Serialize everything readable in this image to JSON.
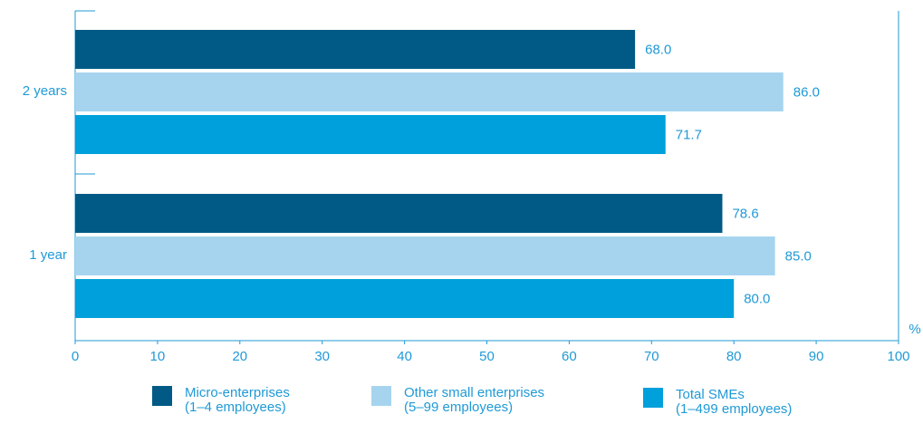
{
  "chart_data": {
    "type": "bar",
    "orientation": "horizontal",
    "categories": [
      "2 years",
      "1 year"
    ],
    "series": [
      {
        "name": "Micro-enterprises (1–4 employees)",
        "color": "#005a85",
        "values": [
          68.0,
          78.6
        ]
      },
      {
        "name": "Other small enterprises (5–99 employees)",
        "color": "#a6d4ef",
        "values": [
          86.0,
          85.0
        ]
      },
      {
        "name": "Total SMEs (1–499 employees)",
        "color": "#00a0dc",
        "values": [
          71.7,
          80.0
        ]
      }
    ],
    "data_labels": {
      "2 years": [
        "68.0",
        "86.0",
        "71.7"
      ],
      "1 year": [
        "78.6",
        "85.0",
        "80.0"
      ]
    },
    "xlim": [
      0,
      100
    ],
    "xticks": [
      "0",
      "10",
      "20",
      "30",
      "40",
      "50",
      "60",
      "70",
      "80",
      "90",
      "100"
    ],
    "xunit": "%",
    "grid": false,
    "legend_position": "bottom"
  },
  "legend": [
    {
      "line1": "Micro-enterprises",
      "line2": "(1–4 employees)",
      "color": "#005a85"
    },
    {
      "line1": "Other small enterprises",
      "line2": "(5–99 employees)",
      "color": "#a6d4ef"
    },
    {
      "line1": "Total SMEs",
      "line2": "(1–499 employees)",
      "color": "#00a0dc"
    }
  ],
  "colors": {
    "axis": "#1f9ad6",
    "text": "#1f9ad6"
  }
}
